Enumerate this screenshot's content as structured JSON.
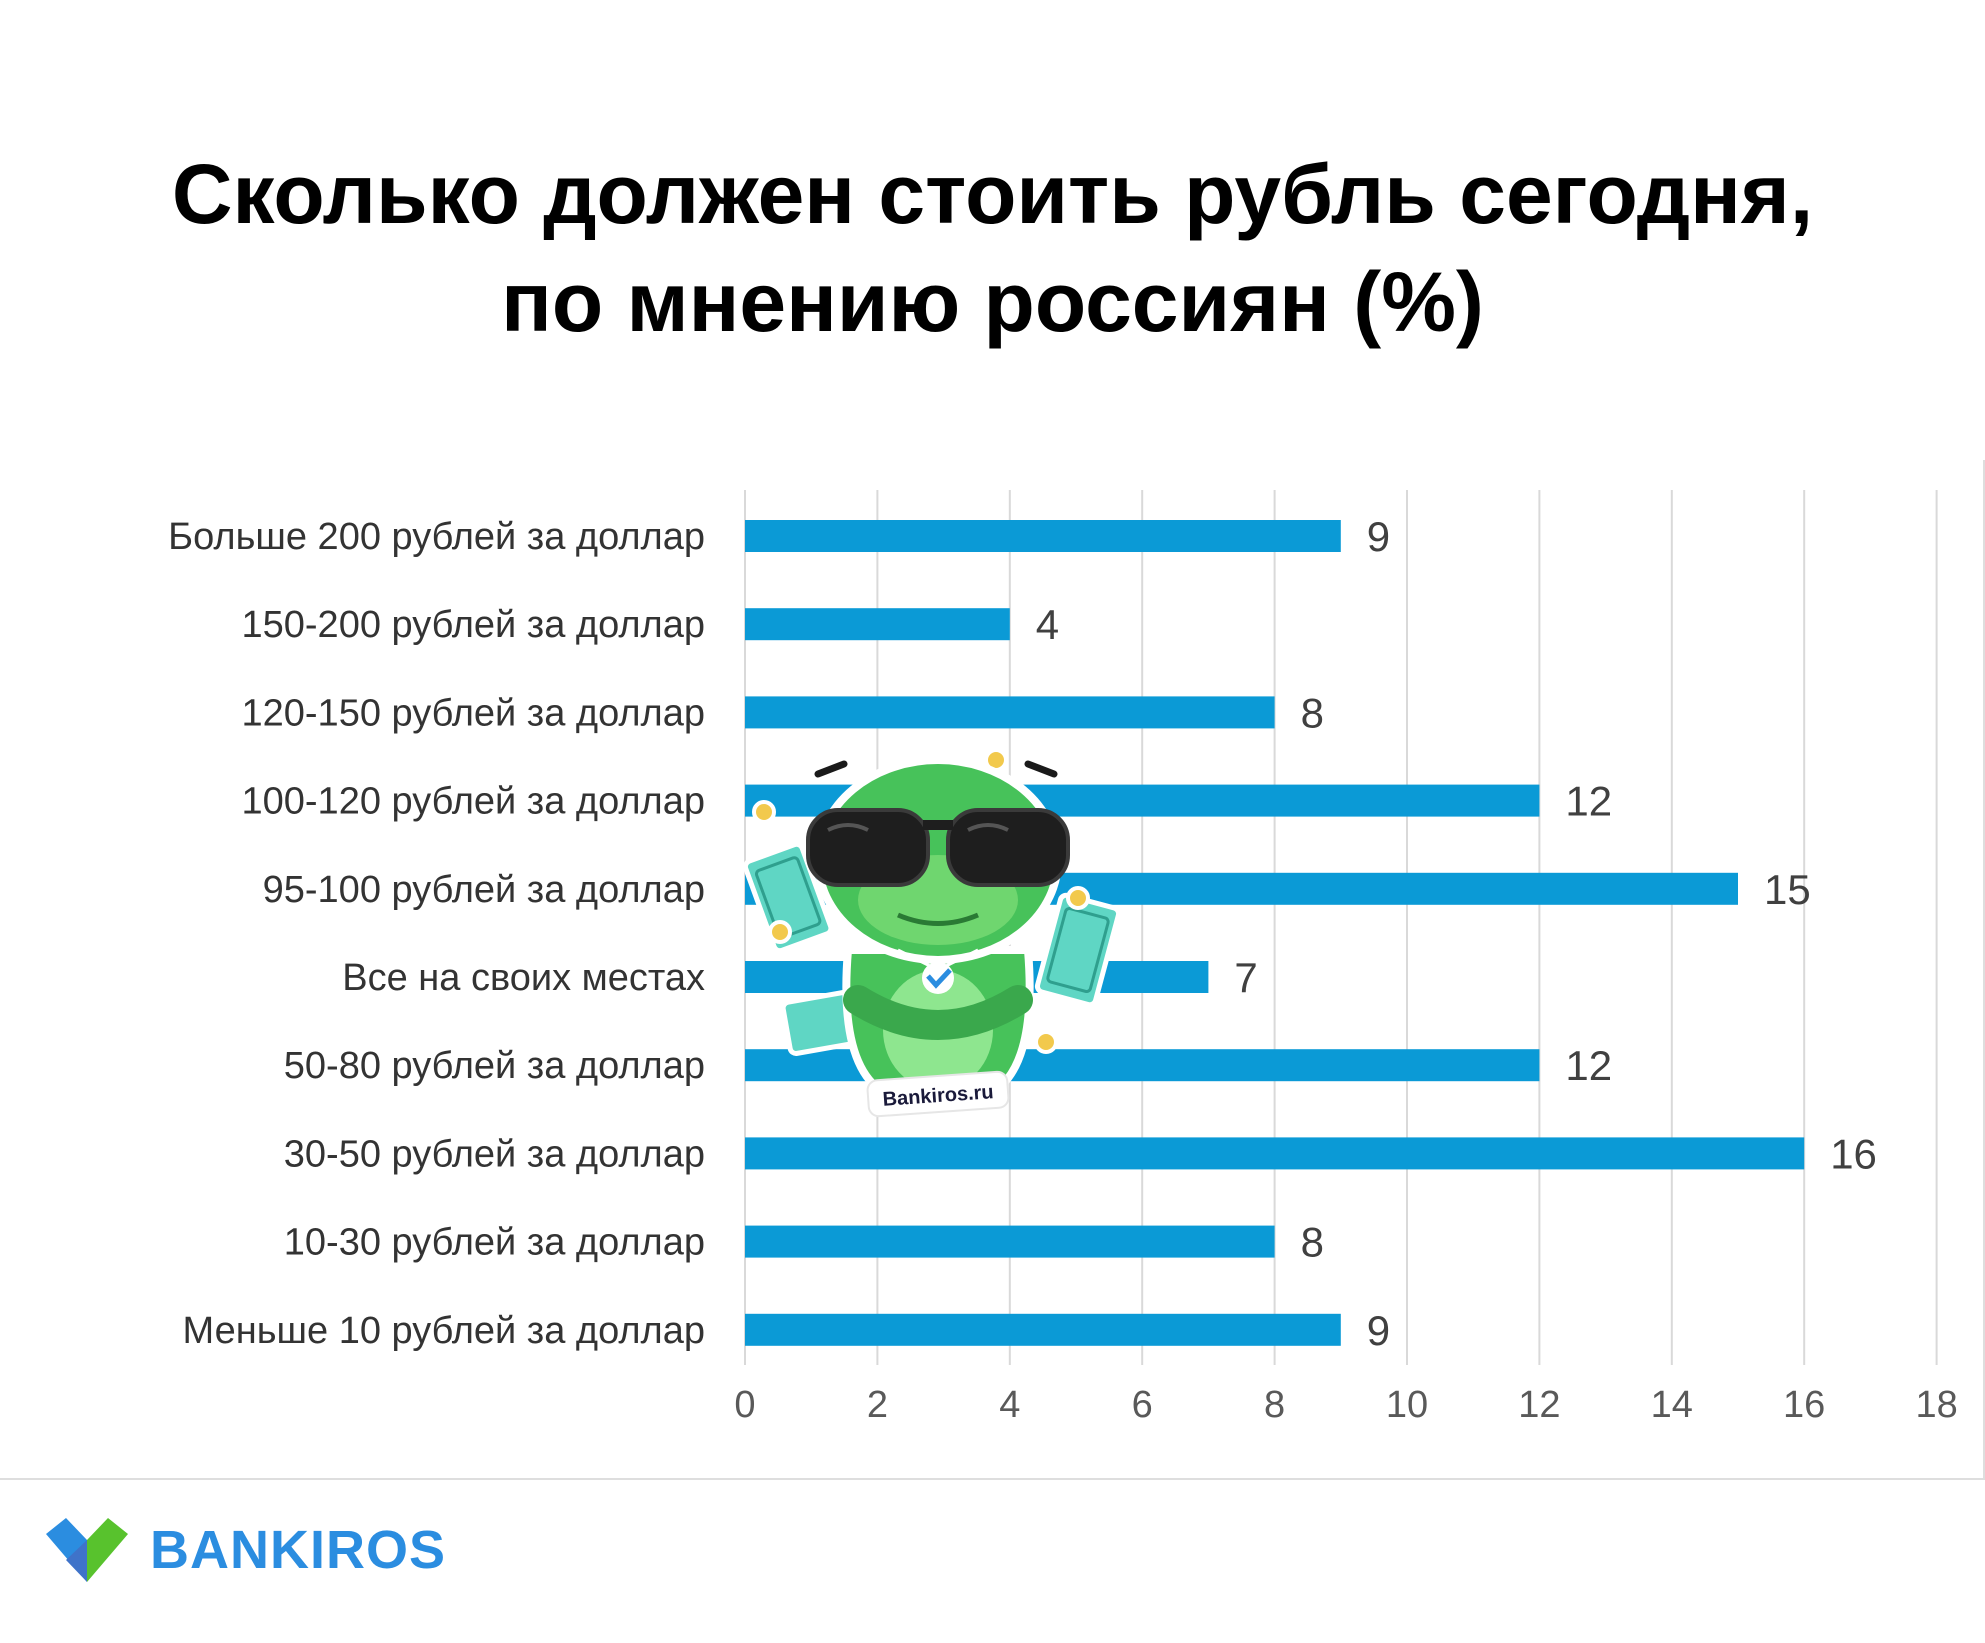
{
  "title": {
    "line1": "Сколько должен стоить рубль сегодня,",
    "line2": "по мнению россиян (%)"
  },
  "chart_data": {
    "type": "bar",
    "orientation": "horizontal",
    "title": "Сколько должен стоить рубль сегодня, по мнению россиян (%)",
    "categories": [
      "Больше 200 рублей за доллар",
      "150-200 рублей за доллар",
      "120-150 рублей за доллар",
      "100-120 рублей за доллар",
      "95-100 рублей за доллар",
      "Все на своих местах",
      "50-80 рублей за доллар",
      "30-50 рублей за доллар",
      "10-30 рублей за доллар",
      "Меньше 10 рублей за доллар"
    ],
    "values": [
      9,
      4,
      8,
      12,
      15,
      7,
      12,
      16,
      8,
      9
    ],
    "xlim": [
      0,
      18
    ],
    "xticks": [
      0,
      2,
      4,
      6,
      8,
      10,
      12,
      14,
      16,
      18
    ],
    "grid": "vertical",
    "bar_color": "#0b9ad6",
    "data_labels": true
  },
  "mascot": {
    "caption": "Bankiros.ru",
    "icon": "frog-mascot-icon"
  },
  "logo": {
    "text": "BANKIROS",
    "icon": "bankiros-checkmark-icon",
    "color": "#2b8de0"
  }
}
